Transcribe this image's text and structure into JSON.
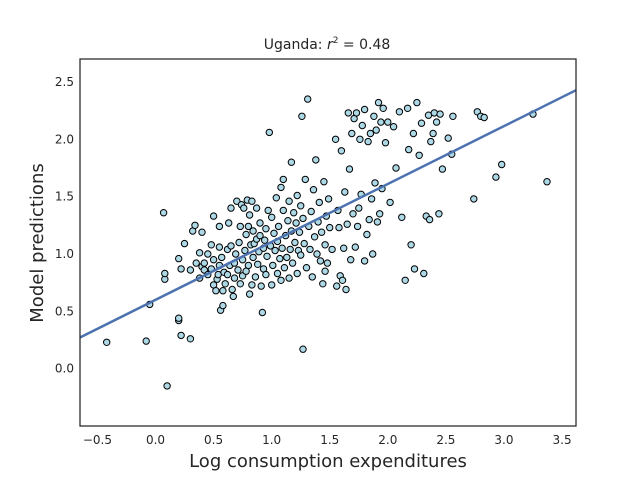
{
  "chart_data": {
    "type": "scatter",
    "title": "Uganda: r² = 0.48",
    "title_main": "Uganda: ",
    "title_r": "r",
    "title_sup": "2",
    "title_rest": " = 0.48",
    "xlabel": "Log consumption expenditures",
    "ylabel": "Model predictions",
    "xlim": [
      -0.65,
      3.62
    ],
    "ylim": [
      -0.5,
      2.7
    ],
    "xticks": [
      -0.5,
      0.0,
      0.5,
      1.0,
      1.5,
      2.0,
      2.5,
      3.0,
      3.5
    ],
    "xtick_labels": [
      "−0.5",
      "0.0",
      "0.5",
      "1.0",
      "1.5",
      "2.0",
      "2.5",
      "3.0",
      "3.5"
    ],
    "yticks": [
      0.0,
      0.5,
      1.0,
      1.5,
      2.0,
      2.5
    ],
    "ytick_labels": [
      "0.0",
      "0.5",
      "1.0",
      "1.5",
      "2.0",
      "2.5"
    ],
    "grid": false,
    "point_color": "#add8e6",
    "point_edge_color": "#000000",
    "line_color": "#4c72b0",
    "regression_line": {
      "slope": 0.505,
      "intercept": 0.6,
      "x_range": [
        -0.65,
        3.62
      ]
    },
    "points": [
      [
        -0.42,
        0.23
      ],
      [
        -0.08,
        0.24
      ],
      [
        -0.05,
        0.56
      ],
      [
        0.08,
        0.78
      ],
      [
        0.08,
        0.83
      ],
      [
        0.07,
        1.36
      ],
      [
        0.1,
        -0.15
      ],
      [
        0.2,
        0.42
      ],
      [
        0.2,
        0.44
      ],
      [
        0.22,
        0.29
      ],
      [
        0.22,
        0.87
      ],
      [
        0.2,
        0.96
      ],
      [
        0.25,
        1.09
      ],
      [
        0.3,
        0.26
      ],
      [
        0.3,
        0.86
      ],
      [
        0.32,
        1.2
      ],
      [
        0.34,
        1.25
      ],
      [
        0.35,
        0.92
      ],
      [
        0.38,
        0.79
      ],
      [
        0.38,
        1.01
      ],
      [
        0.4,
        0.89
      ],
      [
        0.4,
        1.19
      ],
      [
        0.42,
        0.86
      ],
      [
        0.42,
        0.92
      ],
      [
        0.45,
        0.82
      ],
      [
        0.45,
        1.0
      ],
      [
        0.48,
        0.87
      ],
      [
        0.48,
        1.08
      ],
      [
        0.5,
        0.73
      ],
      [
        0.5,
        0.95
      ],
      [
        0.5,
        1.33
      ],
      [
        0.52,
        0.68
      ],
      [
        0.53,
        0.78
      ],
      [
        0.54,
        0.82
      ],
      [
        0.55,
        0.9
      ],
      [
        0.55,
        1.06
      ],
      [
        0.55,
        1.24
      ],
      [
        0.56,
        0.51
      ],
      [
        0.57,
        0.97
      ],
      [
        0.58,
        0.55
      ],
      [
        0.58,
        0.68
      ],
      [
        0.59,
        0.84
      ],
      [
        0.6,
        0.74
      ],
      [
        0.62,
        0.82
      ],
      [
        0.62,
        1.04
      ],
      [
        0.63,
        1.27
      ],
      [
        0.64,
        0.9
      ],
      [
        0.65,
        1.07
      ],
      [
        0.65,
        1.4
      ],
      [
        0.66,
        0.69
      ],
      [
        0.67,
        0.63
      ],
      [
        0.68,
        0.79
      ],
      [
        0.68,
        0.92
      ],
      [
        0.69,
        1.0
      ],
      [
        0.7,
        1.46
      ],
      [
        0.71,
        0.86
      ],
      [
        0.72,
        1.1
      ],
      [
        0.73,
        0.74
      ],
      [
        0.73,
        1.24
      ],
      [
        0.74,
        1.43
      ],
      [
        0.75,
        0.81
      ],
      [
        0.75,
        0.95
      ],
      [
        0.76,
        1.4
      ],
      [
        0.77,
        1.03
      ],
      [
        0.78,
        0.85
      ],
      [
        0.78,
        1.17
      ],
      [
        0.79,
        1.47
      ],
      [
        0.8,
        0.9
      ],
      [
        0.8,
        1.24
      ],
      [
        0.81,
        0.65
      ],
      [
        0.81,
        1.34
      ],
      [
        0.82,
        1.08
      ],
      [
        0.83,
        0.73
      ],
      [
        0.83,
        1.46
      ],
      [
        0.84,
        0.97
      ],
      [
        0.84,
        1.2
      ],
      [
        0.85,
        1.09
      ],
      [
        0.86,
        0.8
      ],
      [
        0.87,
        1.13
      ],
      [
        0.87,
        1.4
      ],
      [
        0.88,
        0.91
      ],
      [
        0.89,
        1.02
      ],
      [
        0.9,
        1.16
      ],
      [
        0.9,
        1.27
      ],
      [
        0.91,
        0.72
      ],
      [
        0.92,
        0.49
      ],
      [
        0.93,
        0.87
      ],
      [
        0.93,
        1.05
      ],
      [
        0.94,
        1.12
      ],
      [
        0.95,
        0.82
      ],
      [
        0.95,
        1.22
      ],
      [
        0.96,
        0.98
      ],
      [
        0.97,
        1.38
      ],
      [
        0.98,
        2.06
      ],
      [
        0.99,
        1.07
      ],
      [
        1.0,
        0.73
      ],
      [
        1.0,
        1.32
      ],
      [
        1.01,
        0.9
      ],
      [
        1.02,
        1.18
      ],
      [
        1.03,
        1.03
      ],
      [
        1.04,
        1.49
      ],
      [
        1.05,
        0.83
      ],
      [
        1.05,
        1.11
      ],
      [
        1.06,
        1.24
      ],
      [
        1.07,
        0.96
      ],
      [
        1.08,
        0.77
      ],
      [
        1.08,
        1.58
      ],
      [
        1.09,
        1.05
      ],
      [
        1.1,
        1.38
      ],
      [
        1.1,
        1.65
      ],
      [
        1.11,
        0.88
      ],
      [
        1.12,
        1.16
      ],
      [
        1.13,
        0.97
      ],
      [
        1.14,
        1.29
      ],
      [
        1.15,
        0.79
      ],
      [
        1.15,
        1.46
      ],
      [
        1.16,
        1.04
      ],
      [
        1.17,
        1.2
      ],
      [
        1.17,
        1.8
      ],
      [
        1.18,
        0.92
      ],
      [
        1.19,
        1.36
      ],
      [
        1.2,
        1.1
      ],
      [
        1.21,
        1.27
      ],
      [
        1.22,
        0.83
      ],
      [
        1.22,
        1.51
      ],
      [
        1.23,
        1.03
      ],
      [
        1.24,
        1.19
      ],
      [
        1.25,
        0.99
      ],
      [
        1.25,
        1.42
      ],
      [
        1.26,
        2.2
      ],
      [
        1.27,
        0.17
      ],
      [
        1.27,
        1.31
      ],
      [
        1.28,
        1.09
      ],
      [
        1.29,
        1.65
      ],
      [
        1.3,
        0.88
      ],
      [
        1.31,
        2.35
      ],
      [
        1.32,
        1.24
      ],
      [
        1.33,
        1.04
      ],
      [
        1.34,
        1.37
      ],
      [
        1.35,
        0.8
      ],
      [
        1.36,
        1.56
      ],
      [
        1.37,
        1.15
      ],
      [
        1.38,
        1.82
      ],
      [
        1.39,
        1.0
      ],
      [
        1.4,
        1.28
      ],
      [
        1.41,
        1.45
      ],
      [
        1.42,
        0.94
      ],
      [
        1.43,
        1.19
      ],
      [
        1.44,
        0.74
      ],
      [
        1.45,
        1.63
      ],
      [
        1.46,
        0.85
      ],
      [
        1.46,
        1.08
      ],
      [
        1.47,
        1.33
      ],
      [
        1.48,
        0.92
      ],
      [
        1.49,
        1.48
      ],
      [
        1.5,
        1.23
      ],
      [
        1.52,
        1.04
      ],
      [
        1.55,
        2.0
      ],
      [
        1.56,
        0.72
      ],
      [
        1.57,
        1.38
      ],
      [
        1.58,
        1.23
      ],
      [
        1.59,
        0.81
      ],
      [
        1.6,
        1.9
      ],
      [
        1.61,
        0.77
      ],
      [
        1.62,
        1.05
      ],
      [
        1.63,
        1.54
      ],
      [
        1.64,
        0.69
      ],
      [
        1.65,
        1.26
      ],
      [
        1.66,
        2.23
      ],
      [
        1.67,
        1.74
      ],
      [
        1.68,
        0.95
      ],
      [
        1.69,
        2.05
      ],
      [
        1.7,
        1.35
      ],
      [
        1.71,
        2.18
      ],
      [
        1.72,
        1.06
      ],
      [
        1.73,
        2.23
      ],
      [
        1.74,
        1.24
      ],
      [
        1.75,
        1.4
      ],
      [
        1.76,
        2.0
      ],
      [
        1.77,
        1.52
      ],
      [
        1.78,
        2.12
      ],
      [
        1.8,
        0.94
      ],
      [
        1.8,
        2.26
      ],
      [
        1.82,
        1.17
      ],
      [
        1.83,
        1.98
      ],
      [
        1.84,
        1.3
      ],
      [
        1.85,
        2.05
      ],
      [
        1.86,
        1.48
      ],
      [
        1.87,
        1.0
      ],
      [
        1.88,
        2.2
      ],
      [
        1.89,
        1.62
      ],
      [
        1.9,
        2.08
      ],
      [
        1.91,
        1.28
      ],
      [
        1.92,
        2.32
      ],
      [
        1.93,
        1.35
      ],
      [
        1.94,
        2.15
      ],
      [
        1.95,
        1.57
      ],
      [
        1.96,
        2.27
      ],
      [
        1.98,
        1.97
      ],
      [
        2.0,
        2.15
      ],
      [
        2.02,
        1.45
      ],
      [
        2.05,
        2.11
      ],
      [
        2.07,
        1.75
      ],
      [
        2.1,
        2.24
      ],
      [
        2.12,
        1.32
      ],
      [
        2.15,
        0.77
      ],
      [
        2.17,
        2.27
      ],
      [
        2.18,
        1.91
      ],
      [
        2.2,
        1.08
      ],
      [
        2.22,
        2.05
      ],
      [
        2.23,
        0.87
      ],
      [
        2.25,
        2.32
      ],
      [
        2.27,
        1.86
      ],
      [
        2.29,
        2.14
      ],
      [
        2.31,
        0.83
      ],
      [
        2.33,
        1.33
      ],
      [
        2.35,
        2.21
      ],
      [
        2.36,
        1.3
      ],
      [
        2.37,
        1.98
      ],
      [
        2.39,
        2.05
      ],
      [
        2.4,
        2.23
      ],
      [
        2.42,
        2.15
      ],
      [
        2.44,
        1.35
      ],
      [
        2.45,
        2.22
      ],
      [
        2.47,
        1.74
      ],
      [
        2.52,
        2.01
      ],
      [
        2.55,
        1.87
      ],
      [
        2.56,
        2.2
      ],
      [
        2.74,
        1.48
      ],
      [
        2.77,
        2.24
      ],
      [
        2.8,
        2.2
      ],
      [
        2.83,
        2.19
      ],
      [
        2.93,
        1.67
      ],
      [
        2.98,
        1.78
      ],
      [
        3.25,
        2.22
      ],
      [
        3.37,
        1.63
      ]
    ]
  }
}
